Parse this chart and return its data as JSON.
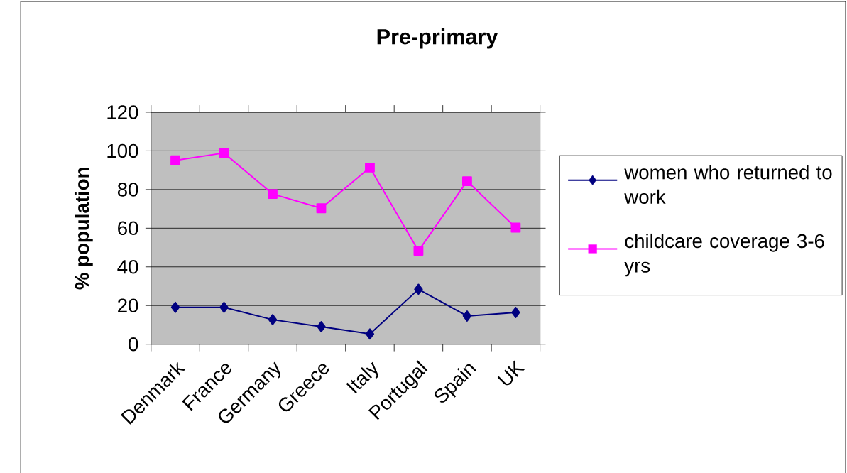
{
  "chart_data": {
    "type": "line",
    "title": "Pre-primary",
    "ylabel": "% population",
    "categories": [
      "Denmark",
      "France",
      "Germany",
      "Greece",
      "Italy",
      "Portugal",
      "Spain",
      "UK"
    ],
    "series": [
      {
        "name": "women who returned to work",
        "color": "#000080",
        "marker": "diamond",
        "values": [
          19.1,
          19.1,
          12.7,
          9.1,
          5.3,
          28.4,
          14.6,
          16.4
        ]
      },
      {
        "name": "childcare coverage 3-6 yrs",
        "color": "#ff00ff",
        "marker": "square",
        "values": [
          95.1,
          98.9,
          77.7,
          70.3,
          91.4,
          48.3,
          84.3,
          60.3
        ]
      }
    ],
    "ylim": [
      0,
      120
    ],
    "yticks": [
      0,
      20,
      40,
      60,
      80,
      100,
      120
    ],
    "grid": "y",
    "legend": "right",
    "line_style": "solid"
  }
}
